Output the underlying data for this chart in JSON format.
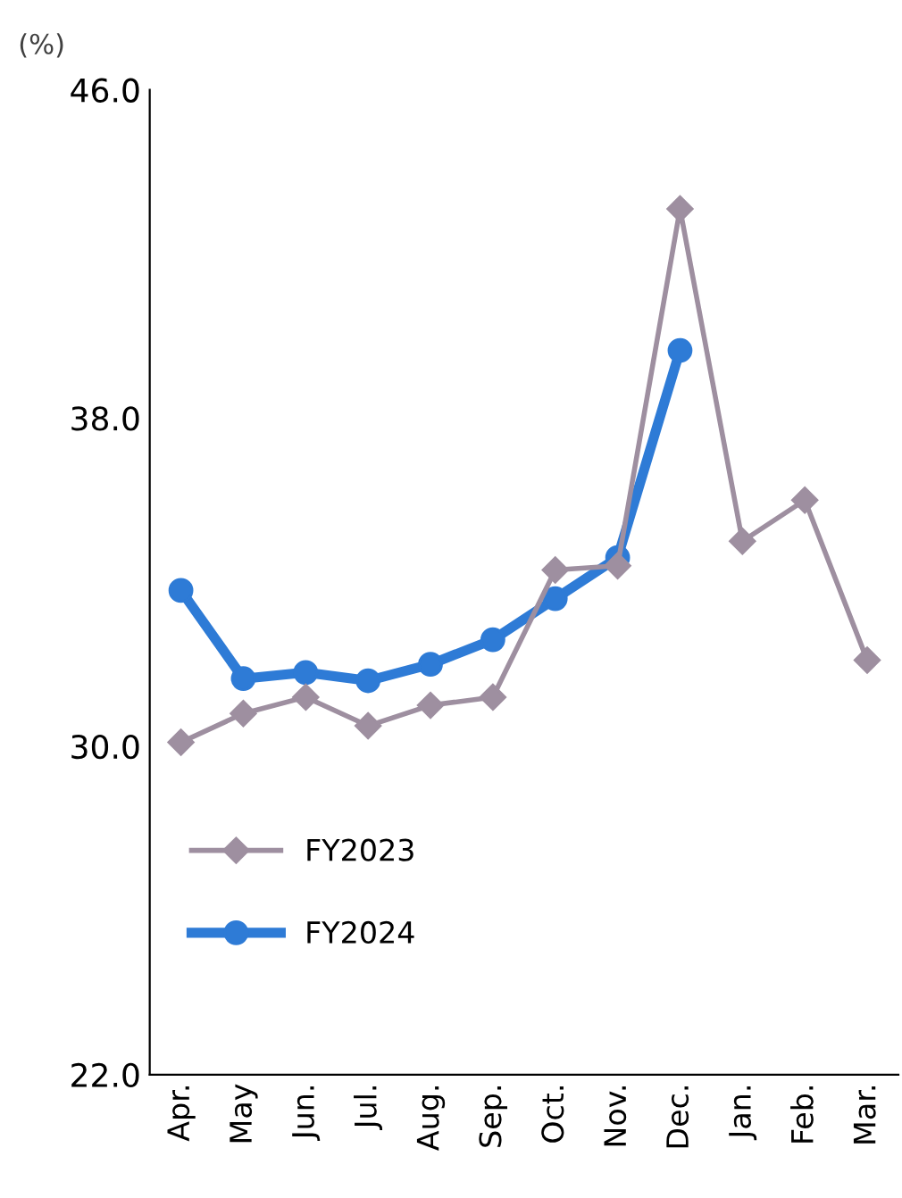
{
  "chart_data": {
    "type": "line",
    "ylabel": "(%)",
    "categories": [
      "Apr.",
      "May",
      "Jun.",
      "Jul.",
      "Aug.",
      "Sep.",
      "Oct.",
      "Nov.",
      "Dec.",
      "Jan.",
      "Feb.",
      "Mar."
    ],
    "series": [
      {
        "name": "FY2023",
        "color": "#9e8fa0",
        "marker": "diamond",
        "values": [
          30.1,
          30.8,
          31.2,
          30.5,
          31.0,
          31.2,
          34.3,
          34.4,
          43.1,
          35.0,
          36.0,
          32.1
        ]
      },
      {
        "name": "FY2024",
        "color": "#2e7bd6",
        "marker": "circle",
        "values": [
          33.8,
          31.65,
          31.8,
          31.6,
          32.0,
          32.6,
          33.6,
          34.6,
          39.65,
          null,
          null,
          null
        ]
      }
    ],
    "ylim": [
      22,
      46
    ],
    "yticks": [
      {
        "value": 22,
        "label": "22.0"
      },
      {
        "value": 30,
        "label": "30.0"
      },
      {
        "value": 38,
        "label": "38.0"
      },
      {
        "value": 46,
        "label": "46.0"
      }
    ],
    "grid": false,
    "legend": "bottom left"
  }
}
